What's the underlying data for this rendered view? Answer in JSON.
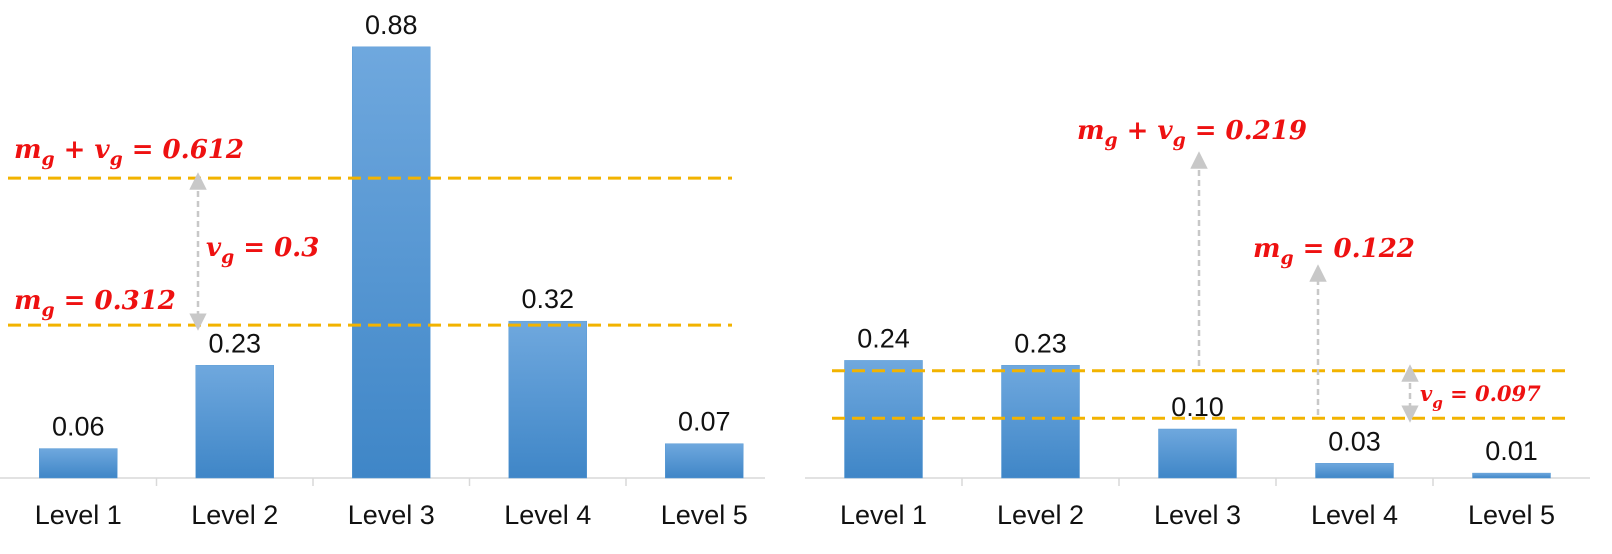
{
  "chart_data": [
    {
      "type": "bar",
      "categories": [
        "Level 1",
        "Level 2",
        "Level 3",
        "Level 4",
        "Level 5"
      ],
      "values": [
        0.06,
        0.23,
        0.88,
        0.32,
        0.07
      ],
      "data_labels": [
        "0.06",
        "0.23",
        "0.88",
        "0.32",
        "0.07"
      ],
      "ylim": [
        0,
        0.88
      ],
      "grid": false,
      "bar_color": "#5b9bd5",
      "reference_lines": [
        {
          "value": 0.612,
          "color": "#f2b300",
          "style": "dashed"
        },
        {
          "value": 0.312,
          "color": "#f2b300",
          "style": "dashed"
        }
      ],
      "annotations": {
        "upper": {
          "lhs": "m",
          "lhs_sub": "g",
          "op": " + ",
          "rhs": "v",
          "rhs_sub": "g",
          "eq": " = 0.612"
        },
        "lower": {
          "lhs": "m",
          "lhs_sub": "g",
          "eq": " = 0.312"
        },
        "gap": {
          "lhs": "v",
          "lhs_sub": "g",
          "eq": " = 0.3"
        }
      }
    },
    {
      "type": "bar",
      "categories": [
        "Level 1",
        "Level 2",
        "Level 3",
        "Level 4",
        "Level 5"
      ],
      "values": [
        0.24,
        0.23,
        0.1,
        0.03,
        0.01
      ],
      "data_labels": [
        "0.24",
        "0.23",
        "0.10",
        "0.03",
        "0.01"
      ],
      "ylim": [
        0,
        0.88
      ],
      "grid": false,
      "bar_color": "#5b9bd5",
      "reference_lines": [
        {
          "value": 0.219,
          "color": "#f2b300",
          "style": "dashed"
        },
        {
          "value": 0.122,
          "color": "#f2b300",
          "style": "dashed"
        }
      ],
      "annotations": {
        "upper": {
          "lhs": "m",
          "lhs_sub": "g",
          "op": " + ",
          "rhs": "v",
          "rhs_sub": "g",
          "eq": " = 0.219"
        },
        "lower": {
          "lhs": "m",
          "lhs_sub": "g",
          "eq": " = 0.122"
        },
        "gap": {
          "lhs": "v",
          "lhs_sub": "g",
          "eq": " = 0.097"
        }
      }
    }
  ],
  "colors": {
    "bar": "#5b9bd5",
    "reference_line": "#f2b300",
    "annotation_text": "#ee1111",
    "arrow": "#c8c8c8"
  }
}
